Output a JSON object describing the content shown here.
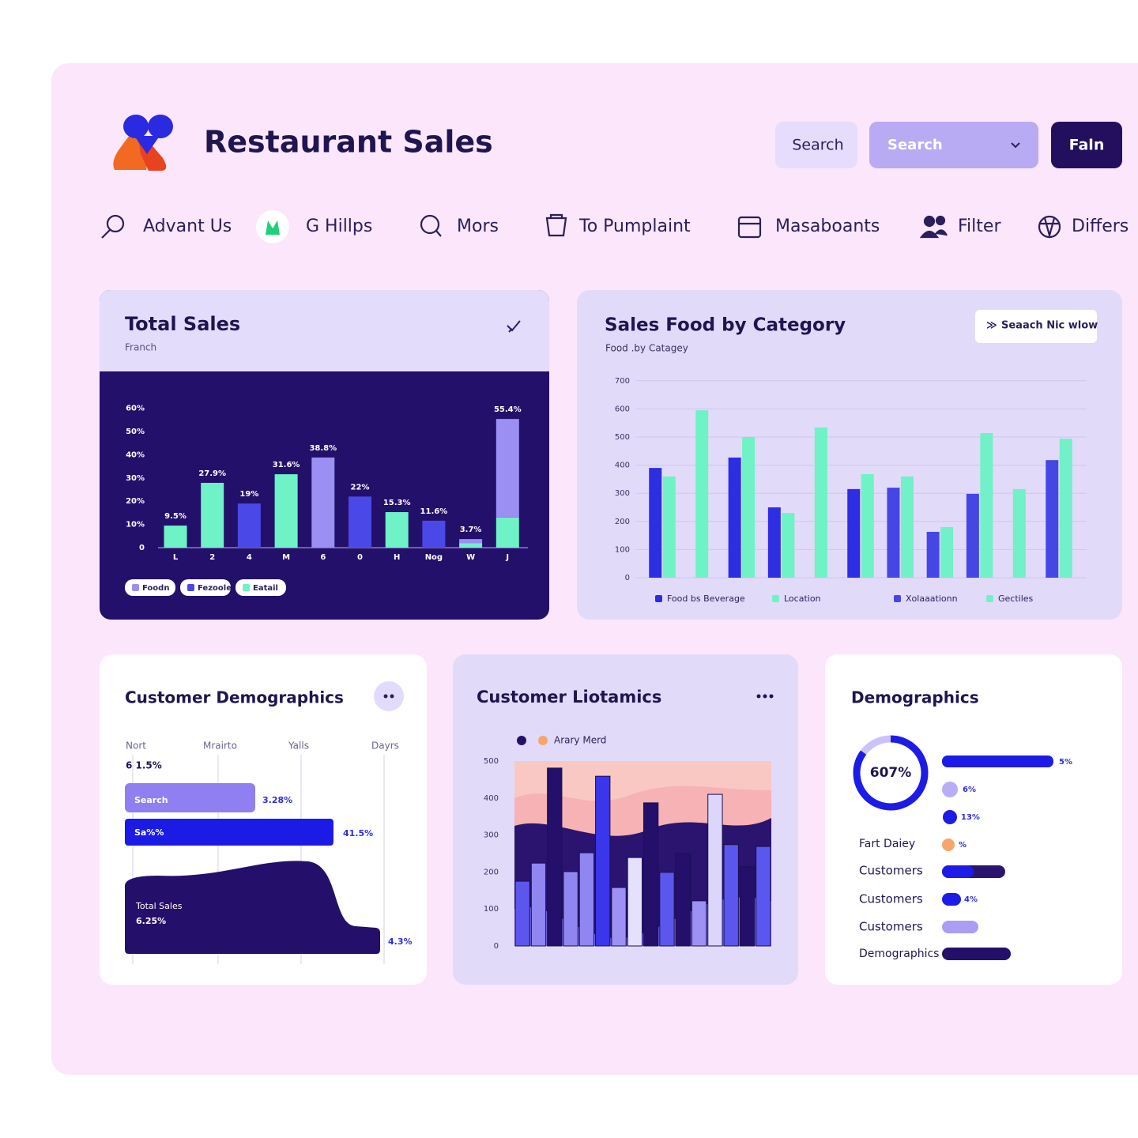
{
  "header": {
    "title": "Restaurant Sales",
    "search_button": "Search",
    "search_select": "Search",
    "action_button": "Faln"
  },
  "nav": [
    "Advant Us",
    "G Hillps",
    "Mors",
    "To Pumplaint",
    "Masaboants",
    "Filter",
    "Differs"
  ],
  "total_sales": {
    "type": "bar",
    "title": "Total Sales",
    "subtitle": "Franch",
    "stacked": true,
    "categories": [
      "L",
      "2",
      "4",
      "M",
      "6",
      "0",
      "H",
      "Nog",
      "W",
      "J"
    ],
    "series": [
      {
        "name": "Eatail",
        "color": "#6ef2c6",
        "values": [
          9.5,
          27.9,
          null,
          31.6,
          null,
          null,
          15.3,
          null,
          2,
          13
        ]
      },
      {
        "name": "Fezoole",
        "color": "#4a48e6",
        "values": [
          null,
          null,
          19,
          null,
          null,
          22,
          null,
          11.6,
          null,
          null
        ]
      },
      {
        "name": "Foodn",
        "color": "#9c8ff4",
        "values": [
          null,
          null,
          null,
          null,
          38.8,
          null,
          null,
          null,
          1.7,
          42.4
        ]
      }
    ],
    "data_labels": [
      "9.5%",
      "27.9%",
      "19%",
      "31.6%",
      "38.8%",
      "22%",
      "15.3%",
      "11.6%",
      "3.7%",
      "55.4%"
    ],
    "ylim": [
      0,
      60
    ],
    "yticks": [
      0,
      {
        "value": 10,
        "label": "10%"
      },
      {
        "value": 20,
        "label": "20%"
      },
      {
        "value": 30,
        "label": "30%"
      },
      {
        "value": 40,
        "label": "40%"
      },
      {
        "value": 50,
        "label": "50%"
      },
      {
        "value": 60,
        "label": "60%"
      }
    ]
  },
  "sales_by_category": {
    "type": "bar",
    "title": "Sales Food by Category",
    "subtitle": "Food .by Catagey",
    "button": "Seaach Nic wlow",
    "grid": true,
    "series": [
      {
        "name": "Food bs Beverage",
        "color": "#2d2de2",
        "values": [
          390,
          null,
          427,
          250,
          null,
          315,
          null,
          null,
          null,
          null,
          null
        ]
      },
      {
        "name": "Location",
        "color": "#6ef2c6",
        "values": [
          360,
          595,
          500,
          230,
          534,
          368,
          null,
          null,
          null,
          null,
          null
        ]
      },
      {
        "name": "Xolaaationn",
        "color": "#4646e4",
        "values": [
          null,
          null,
          null,
          null,
          null,
          null,
          320,
          163,
          298,
          null,
          418
        ]
      },
      {
        "name": "Gectiles",
        "color": "#72f0c8",
        "values": [
          null,
          null,
          null,
          null,
          null,
          null,
          360,
          180,
          514,
          315,
          494
        ]
      }
    ],
    "ylim": [
      0,
      700
    ],
    "yticks": [
      0,
      100,
      200,
      300,
      400,
      500,
      600,
      700
    ]
  },
  "customer_demographics": {
    "title": "Customer Demographics",
    "columns": [
      "Nort",
      "Mrairto",
      "Yalls",
      "Dayrs"
    ],
    "top_note": "6 1.5%",
    "bars": [
      {
        "label": "Search",
        "value_text": "3.28%"
      },
      {
        "label": "Sa%%",
        "value_text": "41.5%"
      }
    ],
    "area": {
      "label": "Total Sales",
      "value_text": "6.25%",
      "end_text": "4.3%"
    }
  },
  "customer_liotamics": {
    "type": "bar",
    "title": "Customer Liotamics",
    "legend": "Arary Merd",
    "values": [
      175,
      224,
      481,
      201,
      252,
      459,
      158,
      239,
      387,
      199,
      250,
      122,
      410,
      274,
      214,
      269
    ],
    "colors": [
      "#5b57ee",
      "#8f86f2",
      "#24106a",
      "#8f86f2",
      "#8f86f2",
      "#3a36ec",
      "#9d92f3",
      "#e6e1fb",
      "#24106a",
      "#5b57ee",
      "#24106a",
      "#9d92f3",
      "#dcd6fa",
      "#5b57ee",
      "#24106a",
      "#5b57ee"
    ],
    "ylim": [
      0,
      500
    ],
    "yticks": [
      0,
      100,
      200,
      300,
      400,
      500
    ]
  },
  "demographics": {
    "title": "Demographics",
    "donut_label": "607%",
    "indicators": [
      "5%",
      "6%",
      "13%",
      "%"
    ],
    "rows": [
      "Fart Daiey",
      "Customers",
      "Customers",
      "Customers",
      "Demographics"
    ],
    "row_note": "4%"
  }
}
